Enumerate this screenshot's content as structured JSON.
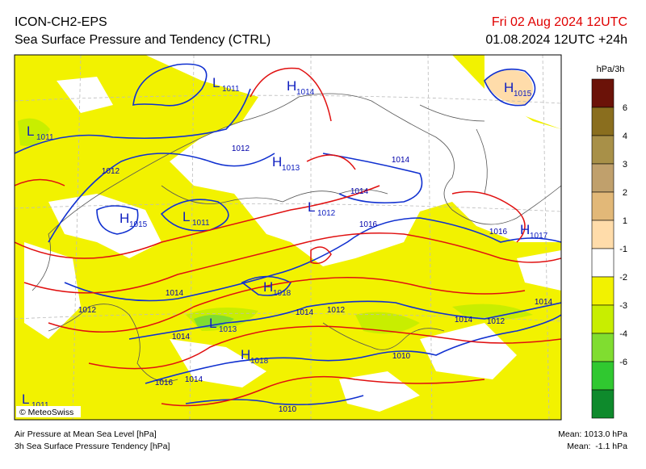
{
  "header": {
    "model": "ICON-CH2-EPS",
    "title": "Sea Surface Pressure and Tendency (CTRL)",
    "valid_time": "Fri 02 Aug 2024 12UTC",
    "run_time": "01.08.2024 12UTC +24h"
  },
  "colorbar": {
    "unit": "hPa/3h",
    "labels": [
      "6",
      "4",
      "3",
      "2",
      "1",
      "-1",
      "-2",
      "-3",
      "-4",
      "-6"
    ],
    "colors": [
      "#6b1208",
      "#8a6e1e",
      "#a89048",
      "#c0a06c",
      "#e2b878",
      "#ffdcaa",
      "#ffffff",
      "#f2f200",
      "#c8ee00",
      "#80dd30",
      "#30c830",
      "#0e8a2c"
    ]
  },
  "centers": [
    {
      "letter": "L",
      "pressure": "1011"
    },
    {
      "letter": "H",
      "pressure": "1014"
    },
    {
      "letter": "H",
      "pressure": "1015"
    },
    {
      "letter": "L",
      "pressure": "1011"
    },
    {
      "letter": "H",
      "pressure": "1013"
    },
    {
      "letter": "L",
      "pressure": "1012"
    },
    {
      "letter": "H",
      "pressure": "1015"
    },
    {
      "letter": "L",
      "pressure": "1011"
    },
    {
      "letter": "H",
      "pressure": "1017"
    },
    {
      "letter": "H",
      "pressure": "1018"
    },
    {
      "letter": "L",
      "pressure": "1013"
    },
    {
      "letter": "H",
      "pressure": "1018"
    },
    {
      "letter": "L",
      "pressure": "1011"
    }
  ],
  "isobar_labels": [
    "1012",
    "1012",
    "1014",
    "1014",
    "1016",
    "1016",
    "1014",
    "1014",
    "1012",
    "1012",
    "1014",
    "1014",
    "1012",
    "1014",
    "1010",
    "1016",
    "1014",
    "1010"
  ],
  "copyright": "© MeteoSwiss",
  "footer": {
    "line1": "Air Pressure at Mean Sea Level [hPa]",
    "line2": "3h Sea Surface Pressure Tendency [hPa]",
    "mean_pressure": "Mean: 1013.0 hPa",
    "mean_tendency": "Mean:  -1.1 hPa"
  }
}
